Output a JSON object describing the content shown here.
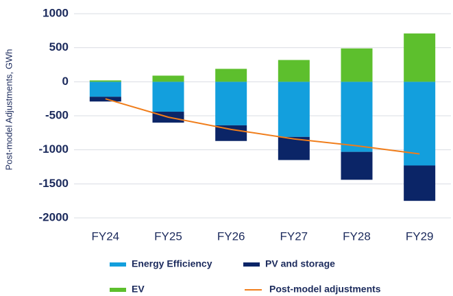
{
  "chart_data": {
    "type": "bar",
    "stacked": true,
    "y_label": "Post-model Adjustments, GWh",
    "categories": [
      "FY24",
      "FY25",
      "FY26",
      "FY27",
      "FY28",
      "FY29"
    ],
    "series": [
      {
        "name": "Energy Efficiency",
        "type": "bar",
        "color": "#139fdd",
        "values": [
          -220,
          -440,
          -640,
          -810,
          -1030,
          -1230
        ]
      },
      {
        "name": "PV and storage",
        "type": "bar",
        "color": "#0b2567",
        "values": [
          -70,
          -160,
          -230,
          -340,
          -410,
          -520
        ]
      },
      {
        "name": "EV",
        "type": "bar",
        "color": "#5dbf2d",
        "values": [
          20,
          90,
          190,
          320,
          490,
          710
        ]
      },
      {
        "name": "Post-model adjustments",
        "type": "line",
        "color": "#f07d1a",
        "values": [
          -250,
          -520,
          -700,
          -840,
          -940,
          -1060
        ]
      }
    ],
    "ylim": [
      -2000,
      1000
    ],
    "yticks": [
      -2000,
      -1500,
      -1000,
      -500,
      0,
      500,
      1000
    ],
    "grid": true
  }
}
